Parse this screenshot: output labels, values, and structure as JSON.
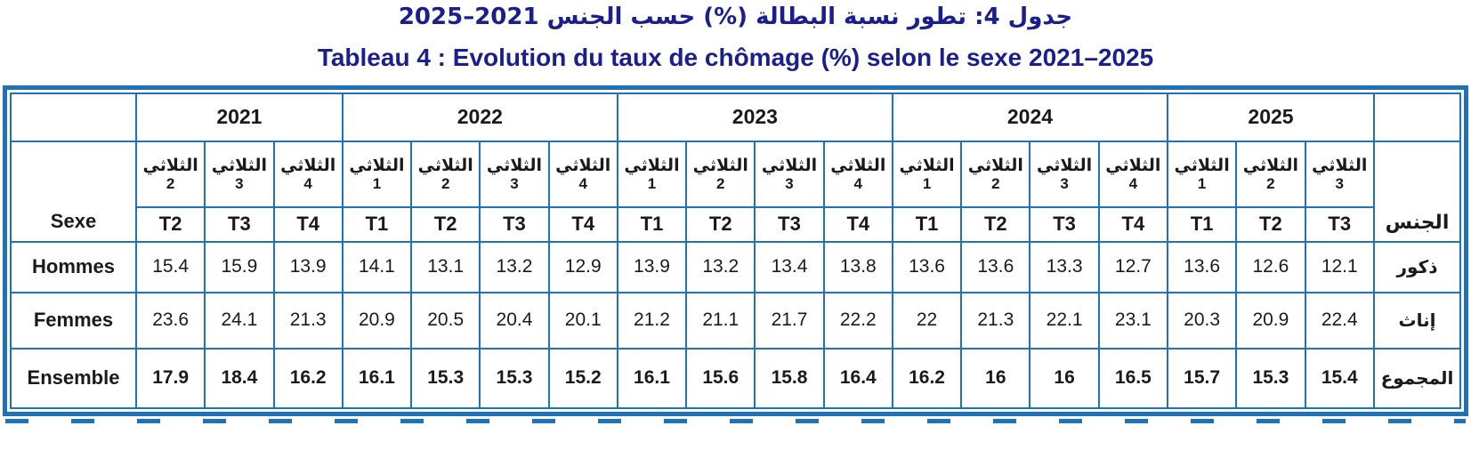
{
  "titles": {
    "arabic": "جدول 4: تطور نسبة البطالة (%) حسب الجنس 2021–2025",
    "french": "Tableau 4 : Evolution du taux de chômage (%) selon le sexe 2021–2025"
  },
  "colors": {
    "border_blue": "#1E73B8",
    "title_navy": "#1B1F8E",
    "text": "#1a1a1a",
    "background": "#ffffff"
  },
  "table": {
    "corner_left_label": "Sexe",
    "corner_right_label": "الجنس",
    "quarter_word_ar": "الثلاثي",
    "t_prefix": "T",
    "years": [
      {
        "label": "2021",
        "quarters": [
          2,
          3,
          4
        ]
      },
      {
        "label": "2022",
        "quarters": [
          1,
          2,
          3,
          4
        ]
      },
      {
        "label": "2023",
        "quarters": [
          1,
          2,
          3,
          4
        ]
      },
      {
        "label": "2024",
        "quarters": [
          1,
          2,
          3,
          4
        ]
      },
      {
        "label": "2025",
        "quarters": [
          1,
          2,
          3
        ]
      }
    ],
    "rows": [
      {
        "label_fr": "Hommes",
        "label_ar": "ذكور",
        "bold": false,
        "values": [
          "15.4",
          "15.9",
          "13.9",
          "14.1",
          "13.1",
          "13.2",
          "12.9",
          "13.9",
          "13.2",
          "13.4",
          "13.8",
          "13.6",
          "13.6",
          "13.3",
          "12.7",
          "13.6",
          "12.6",
          "12.1"
        ]
      },
      {
        "label_fr": "Femmes",
        "label_ar": "إناث",
        "bold": false,
        "values": [
          "23.6",
          "24.1",
          "21.3",
          "20.9",
          "20.5",
          "20.4",
          "20.1",
          "21.2",
          "21.1",
          "21.7",
          "22.2",
          "22",
          "21.3",
          "22.1",
          "23.1",
          "20.3",
          "20.9",
          "22.4"
        ]
      },
      {
        "label_fr": "Ensemble",
        "label_ar": "المجموع",
        "bold": true,
        "values": [
          "17.9",
          "18.4",
          "16.2",
          "16.1",
          "15.3",
          "15.3",
          "15.2",
          "16.1",
          "15.6",
          "15.8",
          "16.4",
          "16.2",
          "16",
          "16",
          "16.5",
          "15.7",
          "15.3",
          "15.4"
        ]
      }
    ]
  }
}
